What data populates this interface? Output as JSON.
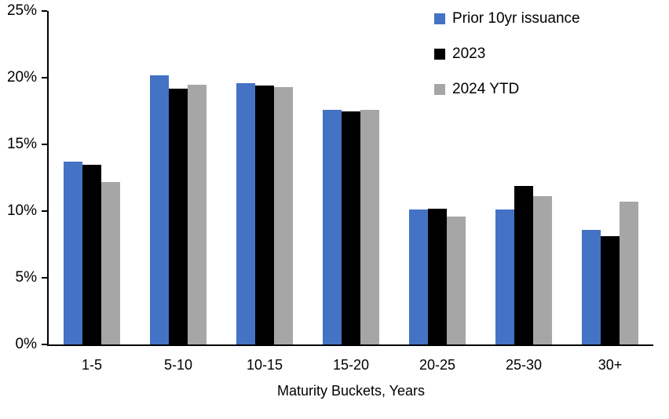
{
  "chart_data": {
    "type": "bar",
    "title": "",
    "xlabel": "Maturity Buckets, Years",
    "ylabel": "",
    "ylim": [
      0,
      25
    ],
    "ytick_step": 5,
    "yticks": [
      "0%",
      "5%",
      "10%",
      "15%",
      "20%",
      "25%"
    ],
    "grid": false,
    "legend_position": "top-right",
    "categories": [
      "1-5",
      "5-10",
      "10-15",
      "15-20",
      "20-25",
      "25-30",
      "30+"
    ],
    "series": [
      {
        "name": "Prior 10yr issuance",
        "color": "#4472C4",
        "values": [
          13.7,
          20.2,
          19.6,
          17.6,
          10.1,
          10.1,
          8.6
        ]
      },
      {
        "name": "2023",
        "color": "#000000",
        "values": [
          13.5,
          19.2,
          19.4,
          17.5,
          10.2,
          11.9,
          8.1
        ]
      },
      {
        "name": "2024 YTD",
        "color": "#A6A6A6",
        "values": [
          12.2,
          19.5,
          19.3,
          17.6,
          9.6,
          11.1,
          10.7
        ]
      }
    ]
  }
}
